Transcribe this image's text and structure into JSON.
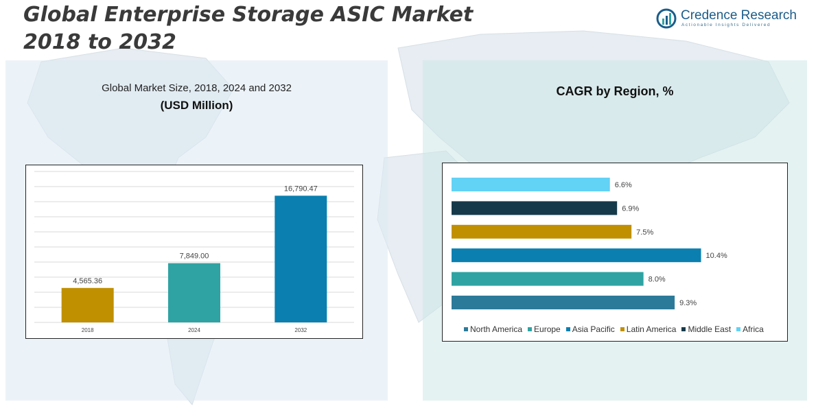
{
  "header": {
    "title_line1": "Global Enterprise Storage ASIC Market",
    "title_line2": "2018 to 2032"
  },
  "logo": {
    "name": "Credence Research",
    "tagline": "Actionable Insights Delivered"
  },
  "colors": {
    "gold": "#c09000",
    "teal": "#2fa3a3",
    "blue": "#0a7fb0",
    "steel": "#2c7a9a",
    "dark": "#173a4a",
    "sky": "#62d2f5"
  },
  "chart_data": [
    {
      "type": "bar",
      "subtitle": "Global Market Size, 2018, 2024 and 2032",
      "unit_label": "(USD Million)",
      "categories": [
        "2018",
        "2024",
        "2032"
      ],
      "values": [
        4565.36,
        7849.0,
        16790.47
      ],
      "value_labels": [
        "4,565.36",
        "7,849.00",
        "16,790.47"
      ],
      "bar_colors": [
        "#c09000",
        "#2fa3a3",
        "#0a7fb0"
      ],
      "ylim": [
        0,
        20000
      ],
      "grid": true
    },
    {
      "type": "bar",
      "orientation": "horizontal",
      "title": "CAGR by Region, %",
      "series": [
        {
          "name": "North America",
          "value": 9.3,
          "label": "9.3%",
          "color": "#2c7a9a"
        },
        {
          "name": "Europe",
          "value": 8.0,
          "label": "8.0%",
          "color": "#2fa3a3"
        },
        {
          "name": "Asia Pacific",
          "value": 10.4,
          "label": "10.4%",
          "color": "#0a7fb0"
        },
        {
          "name": "Latin America",
          "value": 7.5,
          "label": "7.5%",
          "color": "#c09000"
        },
        {
          "name": "Middle East",
          "value": 6.9,
          "label": "6.9%",
          "color": "#173a4a"
        },
        {
          "name": "Africa",
          "value": 6.6,
          "label": "6.6%",
          "color": "#62d2f5"
        }
      ],
      "xlim": [
        0,
        11.5
      ],
      "legend_position": "bottom"
    }
  ]
}
